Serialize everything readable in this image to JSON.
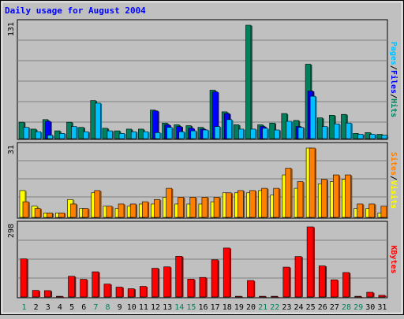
{
  "chart_data": [
    {
      "type": "bar",
      "title": "Daily usage for August 2004",
      "days": [
        "1",
        "2",
        "3",
        "4",
        "5",
        "6",
        "7",
        "8",
        "9",
        "10",
        "11",
        "12",
        "13",
        "14",
        "15",
        "16",
        "17",
        "18",
        "19",
        "20",
        "21",
        "22",
        "23",
        "24",
        "25",
        "26",
        "27",
        "28",
        "29",
        "30",
        "31"
      ],
      "weekend_days": [
        1,
        7,
        8,
        14,
        15,
        21,
        22,
        28,
        29
      ],
      "ymax_label": "131",
      "ymax": 131,
      "axis_label_parts": [
        "Pages",
        "/",
        "Files",
        "/",
        "Hits"
      ],
      "series": [
        {
          "name": "Hits",
          "color": "#00805c",
          "values": [
            19,
            11,
            22,
            9,
            19,
            13,
            44,
            12,
            9,
            11,
            11,
            33,
            18,
            16,
            15,
            13,
            56,
            31,
            16,
            131,
            16,
            18,
            29,
            21,
            86,
            24,
            27,
            28,
            6,
            7,
            5
          ]
        },
        {
          "name": "Files",
          "color": "#0000ff",
          "values": [
            0,
            0,
            20,
            0,
            0,
            0,
            0,
            0,
            0,
            0,
            0,
            32,
            16,
            14,
            12,
            11,
            54,
            29,
            0,
            0,
            14,
            0,
            0,
            14,
            55,
            0,
            0,
            0,
            0,
            0,
            0
          ]
        },
        {
          "name": "Pages",
          "color": "#00c0ff",
          "values": [
            13,
            8,
            4,
            6,
            14,
            8,
            41,
            9,
            6,
            8,
            8,
            7,
            13,
            8,
            9,
            10,
            14,
            22,
            11,
            11,
            12,
            10,
            20,
            13,
            49,
            14,
            17,
            18,
            5,
            5,
            4
          ]
        }
      ]
    },
    {
      "type": "bar",
      "ymax_label": "31",
      "ymax": 31,
      "axis_label_parts": [
        "Sites",
        "/",
        "Visits"
      ],
      "series": [
        {
          "name": "Visits",
          "color": "#ffff00",
          "values": [
            12,
            5,
            2,
            2,
            8,
            4,
            11,
            5,
            4,
            5,
            6,
            6,
            9,
            6,
            6,
            6,
            7,
            11,
            11,
            11,
            12,
            10,
            19,
            13,
            31,
            15,
            16,
            17,
            4,
            4,
            2
          ]
        },
        {
          "name": "Sites",
          "color": "#ff8000",
          "values": [
            7,
            4,
            2,
            2,
            6,
            4,
            12,
            5,
            6,
            6,
            7,
            8,
            13,
            9,
            9,
            9,
            9,
            11,
            12,
            12,
            13,
            13,
            22,
            16,
            31,
            17,
            19,
            19,
            6,
            6,
            5
          ]
        }
      ]
    },
    {
      "type": "bar",
      "ymax_label": "298",
      "ymax": 298,
      "axis_label_parts": [
        "KBytes"
      ],
      "series": [
        {
          "name": "KBytes",
          "color": "#ff0000",
          "values": [
            162,
            28,
            27,
            3,
            88,
            75,
            107,
            55,
            42,
            35,
            45,
            122,
            128,
            173,
            76,
            83,
            158,
            208,
            3,
            70,
            3,
            3,
            127,
            172,
            298,
            132,
            73,
            104,
            3,
            20,
            7
          ]
        }
      ]
    }
  ],
  "colors": {
    "background": "#c0c0c0",
    "title": "#0000ff",
    "grid": "#808080",
    "weekday": "#000000",
    "weekend": "#00805c"
  }
}
